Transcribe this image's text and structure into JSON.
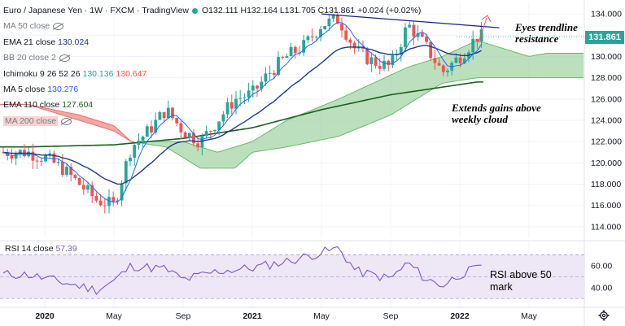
{
  "header": {
    "title": "Euro / Japanese Yen · 1W · FXCM · TradingView",
    "ohlc": "O132.111 H132.164 L131.705 C131.861 +0.024 (+0.02%)",
    "status_color": "#26a69a"
  },
  "indicators": [
    {
      "label": "MA 50 close",
      "value": "",
      "hidden": true
    },
    {
      "label": "EMA 21 close",
      "value": "130.024",
      "hidden": false
    },
    {
      "label": "BB 20 close 2",
      "value": "",
      "hidden": true
    },
    {
      "label": "Ichimoku 9 26 52 26",
      "value": "130.136",
      "value2": "130.647",
      "hidden": false
    },
    {
      "label": "MA 5 close",
      "value": "130.276",
      "hidden": false
    },
    {
      "label": "EMA 110 close",
      "value": "127.604",
      "hidden": false
    },
    {
      "label": "MA 200 close",
      "value": "",
      "hidden": true
    }
  ],
  "rsi": {
    "label": "RSI 14 close",
    "value": "57.39"
  },
  "price_tag": "131.861",
  "annotations": {
    "trendline": "Eyes trendline\nresistance",
    "cloud": "Extends gains above\nweekly cloud",
    "rsi": "RSI above 50\nmark"
  },
  "colors": {
    "up": "#26a69a",
    "down": "#ef5350",
    "ema21": "#1e3a8a",
    "ma5": "#2962ff",
    "ema110": "#1b5e20",
    "cloud_bull": "#a5d6a7",
    "cloud_bear": "#f28b82",
    "trendline": "#1a237e",
    "rsi_line": "#7e57c2",
    "rsi_band": "#ede7f6"
  },
  "chart_data": {
    "type": "candlestick",
    "timeframe": "1W",
    "symbol": "EURJPY",
    "ylim": [
      113,
      135
    ],
    "y_ticks": [
      114,
      116,
      118,
      120,
      122,
      124,
      126,
      128,
      130,
      132,
      134
    ],
    "x_ticks": [
      "2020",
      "May",
      "Sep",
      "2021",
      "May",
      "Sep",
      "2022",
      "May"
    ],
    "rsi_ylim": [
      25,
      80
    ],
    "rsi_ticks": [
      40,
      60
    ],
    "rsi_band": [
      30,
      70
    ],
    "price_anchors": [
      [
        "2019-12",
        121.0
      ],
      [
        "2020-01",
        120.5
      ],
      [
        "2020-02",
        119.5
      ],
      [
        "2020-03",
        118.0
      ],
      [
        "2020-04",
        116.5
      ],
      [
        "2020-05",
        116.0
      ],
      [
        "2020-06",
        121.5
      ],
      [
        "2020-07",
        123.0
      ],
      [
        "2020-08",
        125.0
      ],
      [
        "2020-09",
        123.0
      ],
      [
        "2020-10",
        122.0
      ],
      [
        "2020-11",
        124.0
      ],
      [
        "2020-12",
        126.0
      ],
      [
        "2021-01",
        126.5
      ],
      [
        "2021-02",
        128.5
      ],
      [
        "2021-03",
        130.0
      ],
      [
        "2021-04",
        131.0
      ],
      [
        "2021-05",
        133.0
      ],
      [
        "2021-06",
        133.5
      ],
      [
        "2021-07",
        130.5
      ],
      [
        "2021-08",
        129.5
      ],
      [
        "2021-09",
        129.0
      ],
      [
        "2021-10",
        133.0
      ],
      [
        "2021-11",
        131.0
      ],
      [
        "2021-12",
        128.5
      ],
      [
        "2022-01",
        130.0
      ],
      [
        "2022-02",
        131.86
      ]
    ],
    "ema110_anchors": [
      [
        "2019-12",
        121.5
      ],
      [
        "2020-05",
        121.7
      ],
      [
        "2020-09",
        122.3
      ],
      [
        "2021-01",
        123.3
      ],
      [
        "2021-05",
        125.0
      ],
      [
        "2021-09",
        126.4
      ],
      [
        "2022-02",
        127.6
      ]
    ],
    "cloud_top": [
      [
        "2019-12",
        125.5
      ],
      [
        "2020-03",
        124.0
      ],
      [
        "2020-05",
        123.0
      ],
      [
        "2020-06",
        122.0
      ],
      [
        "2020-09",
        122.0
      ],
      [
        "2020-11",
        121.0
      ],
      [
        "2021-01",
        122.0
      ],
      [
        "2021-03",
        124.0
      ],
      [
        "2021-06",
        126.0
      ],
      [
        "2021-08",
        127.5
      ],
      [
        "2021-10",
        129.0
      ],
      [
        "2021-12",
        130.0
      ],
      [
        "2022-02",
        131.5
      ],
      [
        "2022-04",
        130.5
      ],
      [
        "2022-05",
        130.0
      ],
      [
        "2022-06",
        130.3
      ]
    ],
    "cloud_bottom": [
      [
        "2019-12",
        125.5
      ],
      [
        "2020-03",
        124.5
      ],
      [
        "2020-05",
        123.5
      ],
      [
        "2020-06",
        122.0
      ],
      [
        "2020-08",
        121.5
      ],
      [
        "2020-10",
        119.5
      ],
      [
        "2020-12",
        119.5
      ],
      [
        "2021-01",
        121.0
      ],
      [
        "2021-03",
        121.5
      ],
      [
        "2021-06",
        122.5
      ],
      [
        "2021-09",
        124.5
      ],
      [
        "2021-12",
        127.5
      ],
      [
        "2022-02",
        128.0
      ],
      [
        "2022-04",
        128.0
      ],
      [
        "2022-06",
        128.0
      ]
    ],
    "rsi_values": [
      [
        "2019-12",
        52
      ],
      [
        "2020-02",
        45
      ],
      [
        "2020-04",
        38
      ],
      [
        "2020-05",
        46
      ],
      [
        "2020-06",
        60
      ],
      [
        "2020-08",
        57
      ],
      [
        "2020-09",
        47
      ],
      [
        "2020-11",
        55
      ],
      [
        "2021-01",
        58
      ],
      [
        "2021-03",
        64
      ],
      [
        "2021-05",
        72
      ],
      [
        "2021-06",
        76
      ],
      [
        "2021-07",
        55
      ],
      [
        "2021-09",
        48
      ],
      [
        "2021-10",
        63
      ],
      [
        "2021-11",
        48
      ],
      [
        "2021-12",
        42
      ],
      [
        "2022-01",
        52
      ],
      [
        "2022-02",
        57.39
      ]
    ],
    "trendline": [
      [
        "2021-05",
        134.0
      ],
      [
        "2022-03",
        132.7
      ]
    ]
  }
}
